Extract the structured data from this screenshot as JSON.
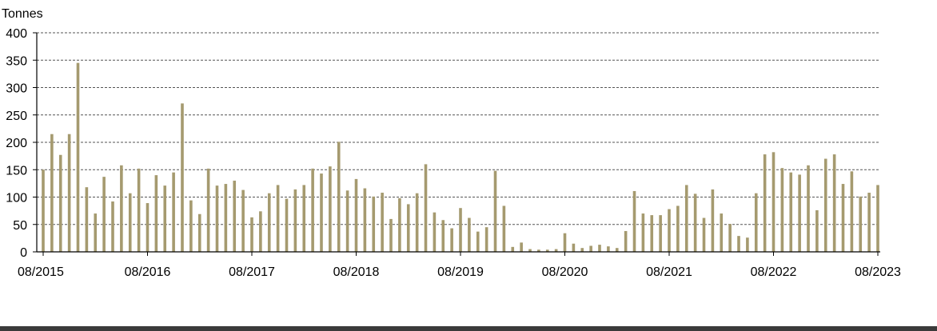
{
  "chart_data": {
    "type": "bar",
    "ylabel": "Tonnes",
    "ylim": [
      0,
      400
    ],
    "yticks": [
      0,
      50,
      100,
      150,
      200,
      250,
      300,
      350,
      400
    ],
    "grid": true,
    "colors": {
      "bar": "#a59a6f",
      "grid": "#555555",
      "axis": "#000000",
      "text": "#000000"
    },
    "x_tick_labels": [
      "08/2015",
      "08/2016",
      "08/2017",
      "08/2018",
      "08/2019",
      "08/2020",
      "08/2021",
      "08/2022",
      "08/2023"
    ],
    "categories": [
      "08/2015",
      "09/2015",
      "10/2015",
      "11/2015",
      "12/2015",
      "01/2016",
      "02/2016",
      "03/2016",
      "04/2016",
      "05/2016",
      "06/2016",
      "07/2016",
      "08/2016",
      "09/2016",
      "10/2016",
      "11/2016",
      "12/2016",
      "01/2017",
      "02/2017",
      "03/2017",
      "04/2017",
      "05/2017",
      "06/2017",
      "07/2017",
      "08/2017",
      "09/2017",
      "10/2017",
      "11/2017",
      "12/2017",
      "01/2018",
      "02/2018",
      "03/2018",
      "04/2018",
      "05/2018",
      "06/2018",
      "07/2018",
      "08/2018",
      "09/2018",
      "10/2018",
      "11/2018",
      "12/2018",
      "01/2019",
      "02/2019",
      "03/2019",
      "04/2019",
      "05/2019",
      "06/2019",
      "07/2019",
      "08/2019",
      "09/2019",
      "10/2019",
      "11/2019",
      "12/2019",
      "01/2020",
      "02/2020",
      "03/2020",
      "04/2020",
      "05/2020",
      "06/2020",
      "07/2020",
      "08/2020",
      "09/2020",
      "10/2020",
      "11/2020",
      "12/2020",
      "01/2021",
      "02/2021",
      "03/2021",
      "04/2021",
      "05/2021",
      "06/2021",
      "07/2021",
      "08/2021",
      "09/2021",
      "10/2021",
      "11/2021",
      "12/2021",
      "01/2022",
      "02/2022",
      "03/2022",
      "04/2022",
      "05/2022",
      "06/2022",
      "07/2022",
      "08/2022",
      "09/2022",
      "10/2022",
      "11/2022",
      "12/2022",
      "01/2023",
      "02/2023",
      "03/2023",
      "04/2023",
      "05/2023",
      "06/2023",
      "07/2023",
      "08/2023"
    ],
    "values": [
      150,
      215,
      177,
      215,
      345,
      118,
      70,
      137,
      92,
      158,
      107,
      152,
      89,
      140,
      121,
      145,
      271,
      94,
      69,
      152,
      121,
      124,
      130,
      113,
      63,
      74,
      107,
      122,
      97,
      114,
      122,
      152,
      143,
      156,
      201,
      112,
      133,
      116,
      101,
      108,
      60,
      98,
      87,
      107,
      160,
      72,
      58,
      43,
      80,
      62,
      37,
      45,
      148,
      84,
      9,
      17,
      5,
      4,
      4,
      5,
      34,
      15,
      7,
      11,
      13,
      10,
      7,
      38,
      111,
      70,
      67,
      67,
      78,
      84,
      122,
      106,
      62,
      114,
      70,
      51,
      29,
      26,
      107,
      178,
      182,
      153,
      145,
      141,
      158,
      76,
      170,
      178,
      124,
      147,
      101,
      108,
      122
    ]
  }
}
